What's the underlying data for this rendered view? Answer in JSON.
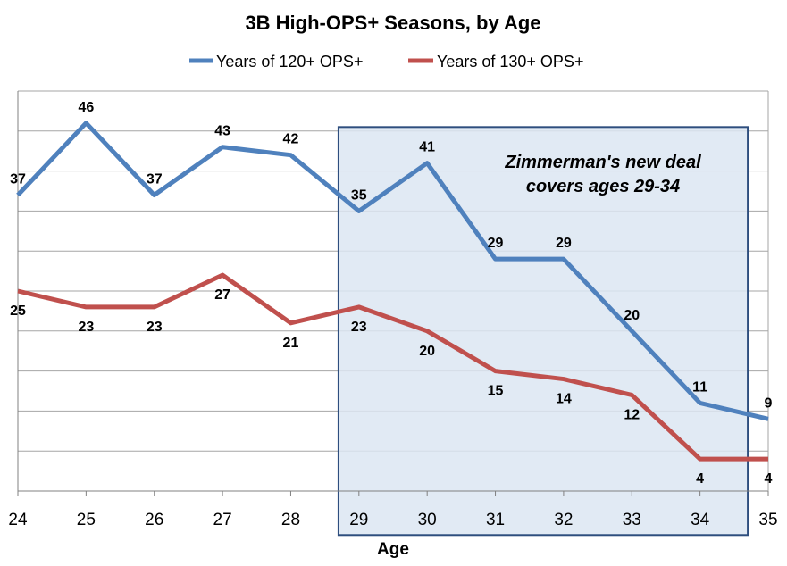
{
  "chart_data": {
    "type": "line",
    "title": "3B High-OPS+ Seasons, by Age",
    "xlabel": "Age",
    "ylabel": "",
    "x": [
      24,
      25,
      26,
      27,
      28,
      29,
      30,
      31,
      32,
      33,
      34,
      35
    ],
    "ylim": [
      0,
      50
    ],
    "grid": true,
    "legend_position": "top",
    "series": [
      {
        "name": "Years of 120+ OPS+",
        "color": "#4f81bd",
        "values": [
          37,
          46,
          37,
          43,
          42,
          35,
          41,
          29,
          29,
          20,
          11,
          9
        ],
        "label_position": "above"
      },
      {
        "name": "Years of 130+ OPS+",
        "color": "#c0504d",
        "values": [
          25,
          23,
          23,
          27,
          21,
          23,
          20,
          15,
          14,
          12,
          4,
          4
        ],
        "label_position": "below"
      }
    ],
    "highlight": {
      "x_range": [
        28.7,
        34.7
      ],
      "text_lines": [
        "Zimmerman's new deal",
        "covers ages 29-34"
      ],
      "fill": "#dce6f2",
      "border": "#2e4e7e"
    }
  }
}
